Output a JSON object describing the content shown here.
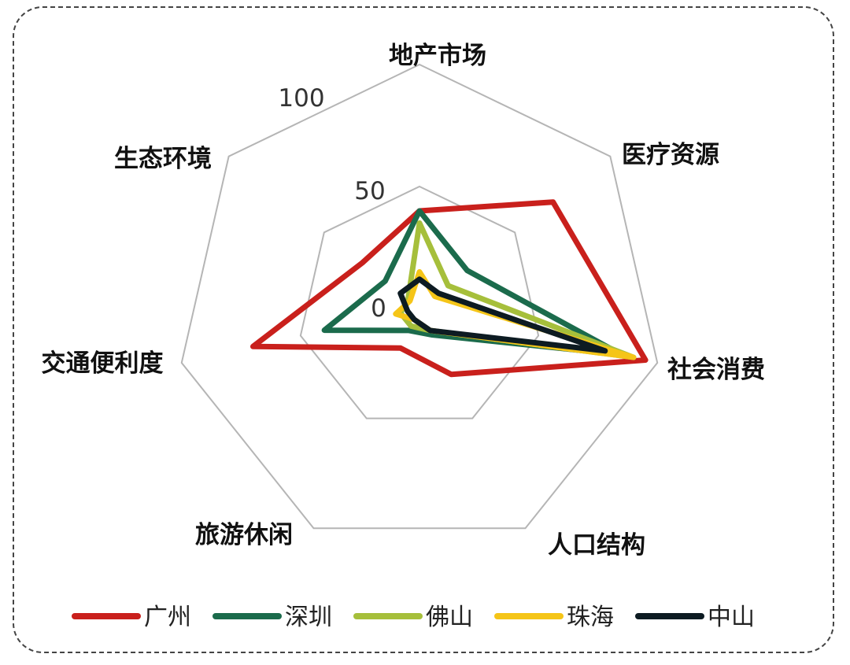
{
  "chart_data": {
    "type": "radar",
    "axes": [
      "地产市场",
      "医疗资源",
      "社会消费",
      "人口结构",
      "旅游休闲",
      "交通便利度",
      "生态环境"
    ],
    "ticks": [
      0,
      50,
      100
    ],
    "rlim": [
      0,
      100
    ],
    "grid": true,
    "legend_position": "bottom",
    "series": [
      {
        "name": "广州",
        "color": "#c9201c",
        "values": [
          40,
          70,
          95,
          30,
          18,
          70,
          30
        ]
      },
      {
        "name": "深圳",
        "color": "#1b6b4c",
        "values": [
          40,
          25,
          85,
          12,
          10,
          40,
          18
        ]
      },
      {
        "name": "佛山",
        "color": "#a6bf3b",
        "values": [
          35,
          15,
          90,
          10,
          8,
          8,
          6
        ]
      },
      {
        "name": "珠海",
        "color": "#f5c518",
        "values": [
          15,
          8,
          90,
          10,
          5,
          10,
          5
        ]
      },
      {
        "name": "中山",
        "color": "#0d1b22",
        "values": [
          12,
          10,
          78,
          10,
          5,
          5,
          10
        ]
      }
    ]
  }
}
